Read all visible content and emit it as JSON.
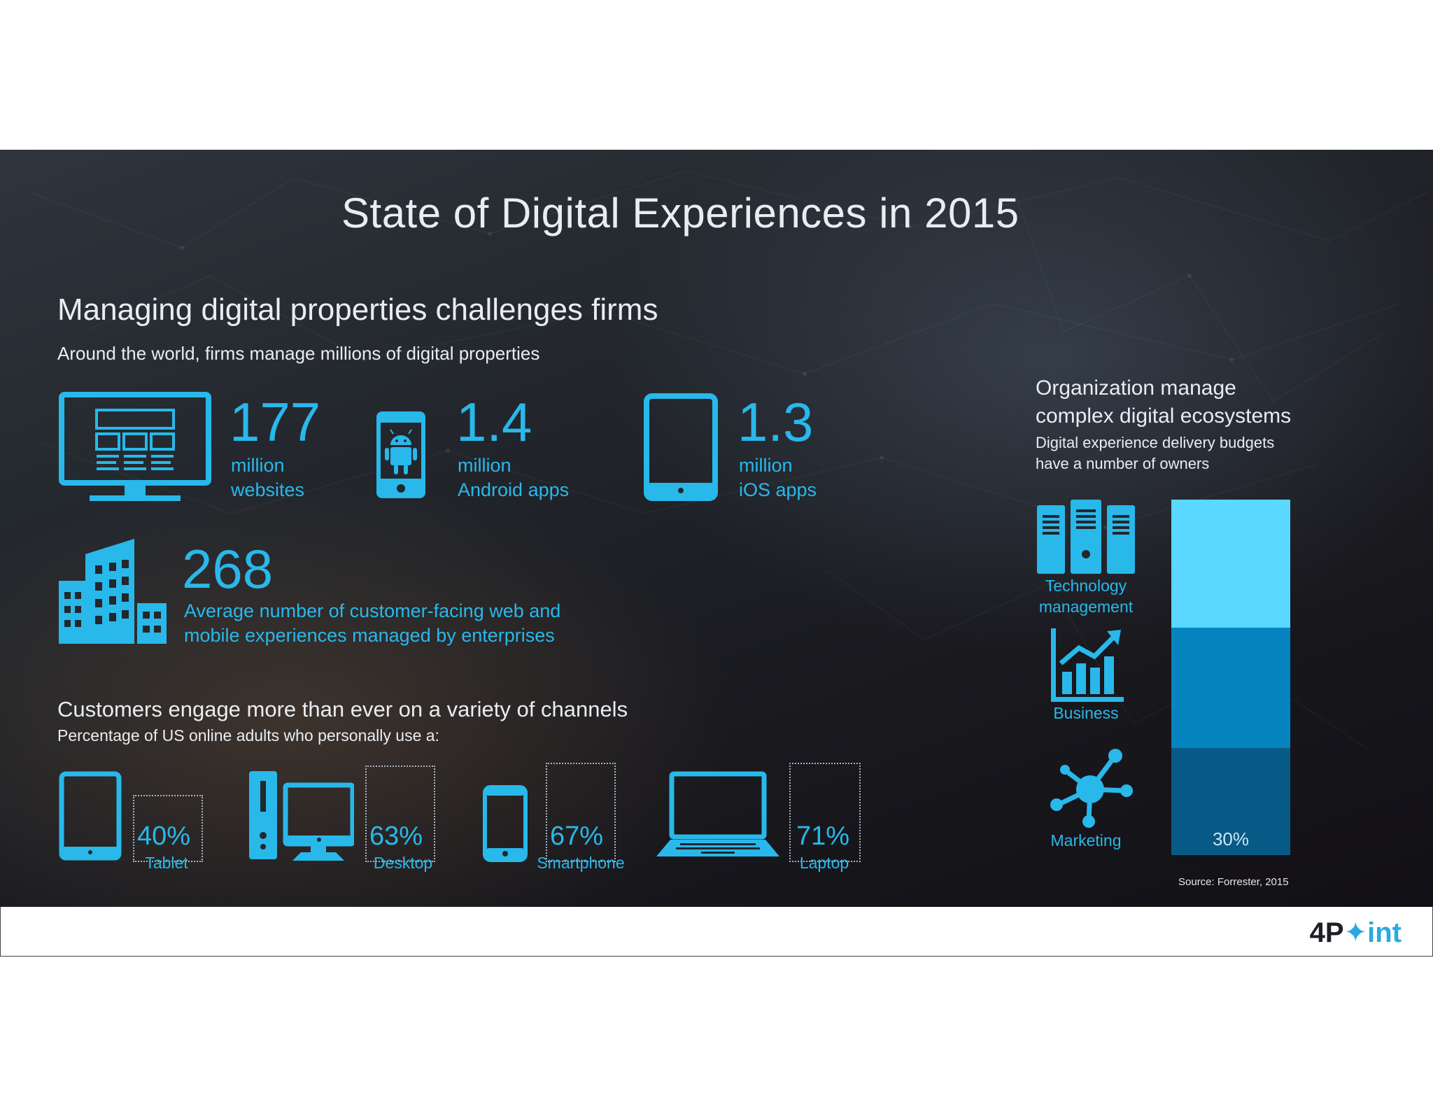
{
  "title": "State of Digital Experiences in 2015",
  "section1": {
    "heading": "Managing digital properties challenges firms",
    "subheading": "Around the world, firms manage millions of digital properties",
    "stats": [
      {
        "icon": "monitor-icon",
        "value": "177",
        "line1": "million",
        "line2": "websites"
      },
      {
        "icon": "android-phone-icon",
        "value": "1.4",
        "line1": "million",
        "line2": "Android apps"
      },
      {
        "icon": "tablet-icon",
        "value": "1.3",
        "line1": "million",
        "line2": "iOS apps"
      }
    ],
    "enterprise": {
      "icon": "buildings-icon",
      "value": "268",
      "line1": "Average number of customer-facing web and",
      "line2": "mobile experiences managed by enterprises"
    }
  },
  "section2": {
    "heading": "Customers engage more than ever on a variety of channels",
    "subheading": "Percentage of US online adults who personally use a:",
    "devices": [
      {
        "icon": "tablet-icon",
        "percent": "40%",
        "label": "Tablet"
      },
      {
        "icon": "desktop-icon",
        "percent": "63%",
        "label": "Desktop"
      },
      {
        "icon": "smartphone-icon",
        "percent": "67%",
        "label": "Smartphone"
      },
      {
        "icon": "laptop-icon",
        "percent": "71%",
        "label": "Laptop"
      }
    ]
  },
  "section3": {
    "heading_line1": "Organization manage",
    "heading_line2": "complex digital ecosystems",
    "sub_line1": "Digital experience delivery budgets",
    "sub_line2": "have a number of owners",
    "owners": [
      {
        "icon": "server-icon",
        "line1": "Technology",
        "line2": "management",
        "color": "#5ad8ff"
      },
      {
        "icon": "chart-growth-icon",
        "line1": "Business",
        "line2": "",
        "color": "#0684c0"
      },
      {
        "icon": "network-hub-icon",
        "line1": "Marketing",
        "line2": "",
        "color": "#065a85"
      }
    ],
    "bar_label": "30%",
    "source": "Source: Forrester, 2015"
  },
  "footer": {
    "logo_part1": "4P",
    "logo_part2": "int"
  },
  "colors": {
    "accent": "#29b8ea",
    "background": "#22262c"
  }
}
